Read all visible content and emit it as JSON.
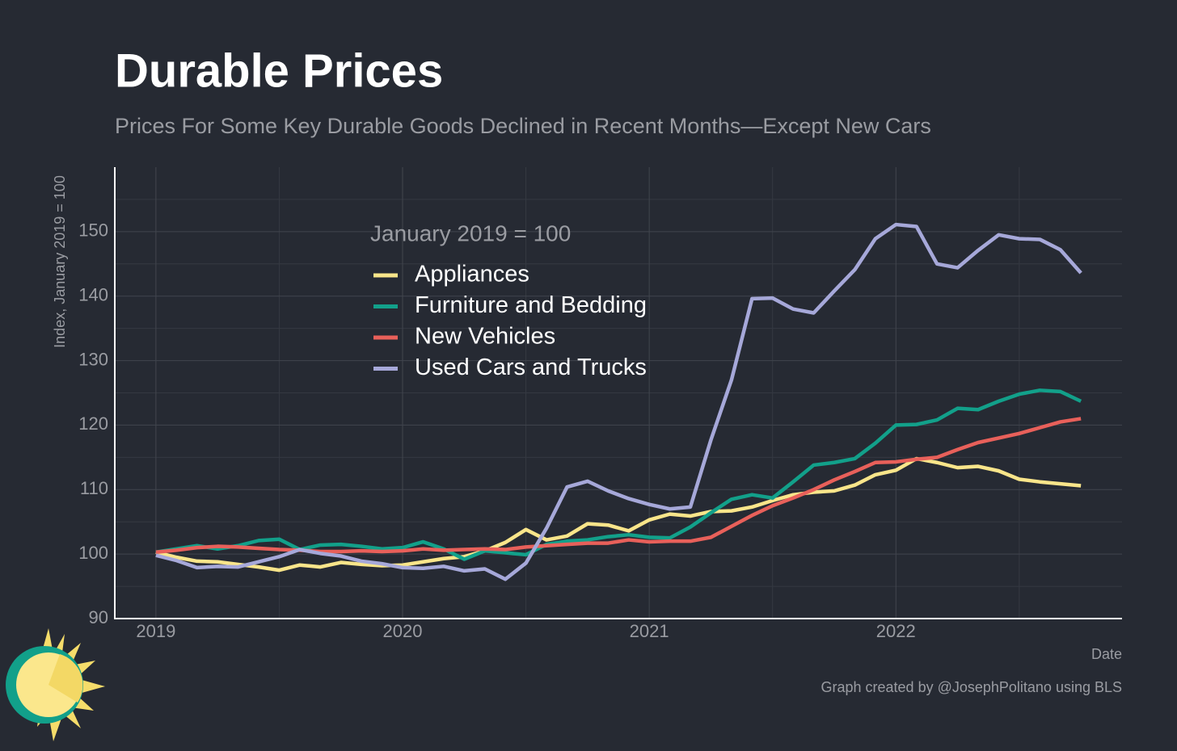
{
  "chart_data": {
    "type": "line",
    "title": "Durable Prices",
    "subtitle": "Prices For Some Key Durable Goods Declined in Recent Months—Except New Cars",
    "y_label": "Index, January 2019 = 100",
    "x_label": "Date",
    "legend_title": "January 2019 = 100",
    "legend_position": "top-left",
    "caption": "Graph created by @JosephPolitano using BLS",
    "x": [
      "2019-01",
      "2019-02",
      "2019-03",
      "2019-04",
      "2019-05",
      "2019-06",
      "2019-07",
      "2019-08",
      "2019-09",
      "2019-10",
      "2019-11",
      "2019-12",
      "2020-01",
      "2020-02",
      "2020-03",
      "2020-04",
      "2020-05",
      "2020-06",
      "2020-07",
      "2020-08",
      "2020-09",
      "2020-10",
      "2020-11",
      "2020-12",
      "2021-01",
      "2021-02",
      "2021-03",
      "2021-04",
      "2021-05",
      "2021-06",
      "2021-07",
      "2021-08",
      "2021-09",
      "2021-10",
      "2021-11",
      "2021-12",
      "2022-01",
      "2022-02",
      "2022-03",
      "2022-04",
      "2022-05",
      "2022-06",
      "2022-07",
      "2022-08",
      "2022-09",
      "2022-10"
    ],
    "series": [
      {
        "name": "Appliances",
        "color": "#f9e58a",
        "values": [
          100.3,
          99.5,
          98.9,
          98.8,
          98.4,
          98.0,
          97.5,
          98.3,
          98.0,
          98.7,
          98.4,
          98.2,
          98.3,
          98.8,
          99.3,
          99.6,
          100.5,
          101.8,
          103.8,
          102.2,
          102.8,
          104.7,
          104.5,
          103.6,
          105.3,
          106.2,
          105.9,
          106.6,
          106.7,
          107.3,
          108.3,
          109.2,
          109.6,
          109.8,
          110.7,
          112.3,
          113.0,
          114.8,
          114.2,
          113.4,
          113.6,
          112.9,
          111.6,
          111.2,
          110.9,
          110.6
        ]
      },
      {
        "name": "Furniture and Bedding",
        "color": "#12a08a",
        "values": [
          100.3,
          100.8,
          101.3,
          100.8,
          101.3,
          102.1,
          102.3,
          100.7,
          101.4,
          101.5,
          101.2,
          100.8,
          101.0,
          101.9,
          100.8,
          99.2,
          100.5,
          100.2,
          99.9,
          101.5,
          102.0,
          102.2,
          102.7,
          103.0,
          102.6,
          102.5,
          104.2,
          106.4,
          108.5,
          109.2,
          108.7,
          111.2,
          113.8,
          114.2,
          114.8,
          117.2,
          120.0,
          120.1,
          120.8,
          122.6,
          122.4,
          123.7,
          124.8,
          125.4,
          125.2,
          123.7
        ]
      },
      {
        "name": "New Vehicles",
        "color": "#e8605a",
        "values": [
          100.3,
          100.6,
          101.0,
          101.2,
          101.1,
          100.9,
          100.7,
          100.6,
          100.4,
          100.4,
          100.5,
          100.4,
          100.5,
          100.8,
          100.6,
          100.7,
          100.8,
          100.7,
          101.1,
          101.3,
          101.5,
          101.7,
          101.7,
          102.2,
          101.9,
          102.0,
          102.0,
          102.6,
          104.3,
          106.0,
          107.5,
          108.7,
          110.0,
          111.5,
          112.8,
          114.2,
          114.3,
          114.7,
          115.0,
          116.2,
          117.3,
          118.0,
          118.7,
          119.6,
          120.5,
          121.0
        ]
      },
      {
        "name": "Used Cars and Trucks",
        "color": "#a6a8d9",
        "values": [
          99.8,
          99.0,
          97.9,
          98.1,
          98.0,
          98.8,
          99.6,
          100.7,
          100.1,
          99.7,
          98.9,
          98.5,
          97.9,
          97.8,
          98.1,
          97.4,
          97.7,
          96.1,
          98.6,
          104.0,
          110.4,
          111.3,
          109.8,
          108.6,
          107.7,
          107.0,
          107.3,
          117.7,
          127.0,
          139.6,
          139.7,
          138.0,
          137.4,
          140.8,
          144.1,
          148.9,
          151.1,
          150.8,
          145.0,
          144.4,
          147.1,
          149.5,
          148.9,
          148.8,
          147.2,
          143.6
        ]
      }
    ],
    "xlim": [
      "2018-11",
      "2022-12"
    ],
    "xticks": [
      {
        "value": "2019-01",
        "label": "2019"
      },
      {
        "value": "2020-01",
        "label": "2020"
      },
      {
        "value": "2021-01",
        "label": "2021"
      },
      {
        "value": "2022-01",
        "label": "2022"
      }
    ],
    "xminorticks": [
      "2019-07",
      "2020-07",
      "2021-07",
      "2022-07"
    ],
    "ylim": [
      90,
      160
    ],
    "yticks": [
      90,
      100,
      110,
      120,
      130,
      140,
      150
    ],
    "yminorticks": [
      95,
      105,
      115,
      125,
      135,
      145,
      155
    ],
    "grid": true
  }
}
